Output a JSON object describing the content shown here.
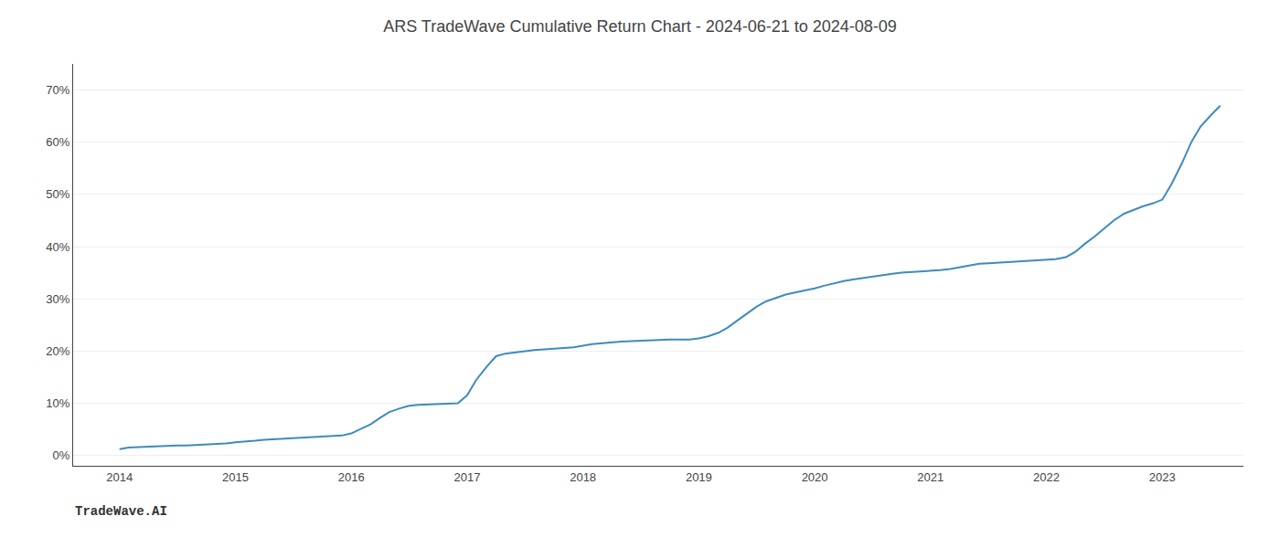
{
  "chart_data": {
    "type": "line",
    "title": "ARS TradeWave Cumulative Return Chart - 2024-06-21 to 2024-08-09",
    "annotations": [
      {
        "text": "TradeWave.AI"
      }
    ],
    "color": "#3d8bbf",
    "grid": "y",
    "x": [
      2014.0,
      2014.08,
      2014.17,
      2014.25,
      2014.33,
      2014.42,
      2014.5,
      2014.58,
      2014.67,
      2014.75,
      2014.83,
      2014.92,
      2015.0,
      2015.08,
      2015.17,
      2015.25,
      2015.33,
      2015.42,
      2015.5,
      2015.58,
      2015.67,
      2015.75,
      2015.83,
      2015.92,
      2016.0,
      2016.08,
      2016.17,
      2016.25,
      2016.33,
      2016.42,
      2016.5,
      2016.58,
      2016.67,
      2016.75,
      2016.83,
      2016.92,
      2017.0,
      2017.08,
      2017.17,
      2017.25,
      2017.33,
      2017.42,
      2017.5,
      2017.58,
      2017.67,
      2017.75,
      2017.83,
      2017.92,
      2018.0,
      2018.08,
      2018.17,
      2018.25,
      2018.33,
      2018.42,
      2018.5,
      2018.58,
      2018.67,
      2018.75,
      2018.83,
      2018.92,
      2019.0,
      2019.08,
      2019.17,
      2019.25,
      2019.33,
      2019.42,
      2019.5,
      2019.58,
      2019.67,
      2019.75,
      2019.83,
      2019.92,
      2020.0,
      2020.08,
      2020.17,
      2020.25,
      2020.33,
      2020.42,
      2020.5,
      2020.58,
      2020.67,
      2020.75,
      2020.83,
      2020.92,
      2021.0,
      2021.08,
      2021.17,
      2021.25,
      2021.33,
      2021.42,
      2021.5,
      2021.58,
      2021.67,
      2021.75,
      2021.83,
      2021.92,
      2022.0,
      2022.08,
      2022.17,
      2022.25,
      2022.33,
      2022.42,
      2022.5,
      2022.58,
      2022.67,
      2022.75,
      2022.83,
      2022.92,
      2023.0,
      2023.08,
      2023.17,
      2023.25,
      2023.33,
      2023.42,
      2023.5
    ],
    "values": [
      0.012,
      0.015,
      0.016,
      0.017,
      0.018,
      0.018,
      0.019,
      0.019,
      0.02,
      0.021,
      0.022,
      0.023,
      0.025,
      0.026,
      0.028,
      0.03,
      0.031,
      0.032,
      0.033,
      0.034,
      0.035,
      0.036,
      0.037,
      0.038,
      0.042,
      0.05,
      0.06,
      0.072,
      0.083,
      0.09,
      0.095,
      0.097,
      0.098,
      0.098,
      0.099,
      0.1,
      0.115,
      0.145,
      0.17,
      0.19,
      0.195,
      0.198,
      0.2,
      0.202,
      0.203,
      0.204,
      0.205,
      0.207,
      0.21,
      0.213,
      0.215,
      0.217,
      0.218,
      0.219,
      0.22,
      0.221,
      0.222,
      0.222,
      0.222,
      0.222,
      0.224,
      0.228,
      0.235,
      0.245,
      0.258,
      0.272,
      0.285,
      0.295,
      0.302,
      0.308,
      0.312,
      0.316,
      0.32,
      0.325,
      0.33,
      0.334,
      0.337,
      0.34,
      0.343,
      0.346,
      0.348,
      0.35,
      0.351,
      0.352,
      0.353,
      0.355,
      0.357,
      0.36,
      0.364,
      0.367,
      0.368,
      0.369,
      0.37,
      0.371,
      0.372,
      0.373,
      0.374,
      0.376,
      0.38,
      0.39,
      0.405,
      0.42,
      0.435,
      0.45,
      0.463,
      0.47,
      0.477,
      0.483,
      0.49,
      0.52,
      0.56,
      0.6,
      0.63,
      0.652,
      0.67
    ],
    "xlim": [
      2013.6,
      2023.7
    ],
    "xticks": [
      2014,
      2015,
      2016,
      2017,
      2018,
      2019,
      2020,
      2021,
      2022,
      2023
    ],
    "ylim": [
      -0.02,
      0.75
    ],
    "yticks": [
      {
        "value": 0.0,
        "label": "0%"
      },
      {
        "value": 0.1,
        "label": "10%"
      },
      {
        "value": 0.2,
        "label": "20%"
      },
      {
        "value": 0.3,
        "label": "30%"
      },
      {
        "value": 0.4,
        "label": "40%"
      },
      {
        "value": 0.5,
        "label": "50%"
      },
      {
        "value": 0.6,
        "label": "60%"
      },
      {
        "value": 0.7,
        "label": "70%"
      }
    ]
  }
}
